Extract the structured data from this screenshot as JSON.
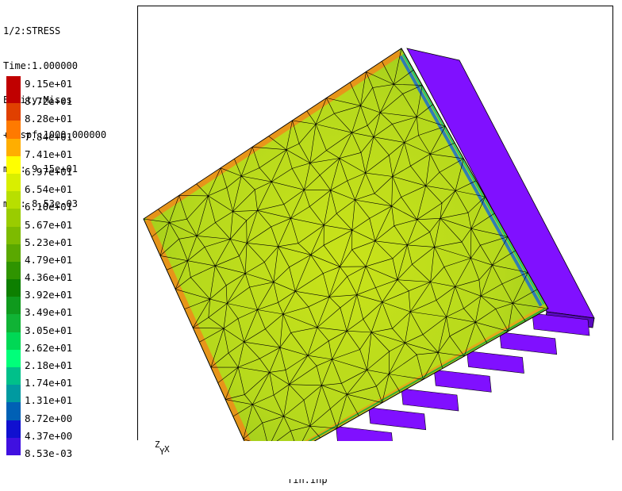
{
  "header": {
    "lines": [
      "1/2:STRESS",
      "Time:1.000000",
      "Entity:Mises",
      "+Dispf:1000.000000",
      "max: 9.15e+01",
      "min: 8.53e-03"
    ]
  },
  "legend": {
    "colors": [
      "#c00000",
      "#e04000",
      "#ff7a00",
      "#ffae00",
      "#ffff00",
      "#d9ef00",
      "#b8df00",
      "#9acc00",
      "#7dbb00",
      "#5aa800",
      "#2f9400",
      "#0d7f00",
      "#0f9a1d",
      "#10b335",
      "#00d855",
      "#00ff7a",
      "#00c08a",
      "#009aa0",
      "#0060b5",
      "#1010d0",
      "#4010e0",
      "#8000ff"
    ],
    "labels": [
      "9.15e+01",
      "8.72e+01",
      "8.28e+01",
      "7.84e+01",
      "7.41e+01",
      "6.97e+01",
      "6.54e+01",
      "6.10e+01",
      "5.67e+01",
      "5.23e+01",
      "4.79e+01",
      "4.36e+01",
      "3.92e+01",
      "3.49e+01",
      "3.05e+01",
      "2.62e+01",
      "2.18e+01",
      "1.74e+01",
      "1.31e+01",
      "8.72e+00",
      "4.37e+00",
      "8.53e-03"
    ]
  },
  "triad": {
    "z": "Z",
    "y": "Y",
    "x": "X"
  },
  "footer": {
    "filename": "fin.inp"
  },
  "colors": {
    "plate_base": "#c3de1a",
    "plate_dark": "#8cc21e",
    "edge_orange": "#f08a1a",
    "edge_red": "#e0501a",
    "side_face": "#8010ff",
    "mesh_line": "#000000"
  }
}
